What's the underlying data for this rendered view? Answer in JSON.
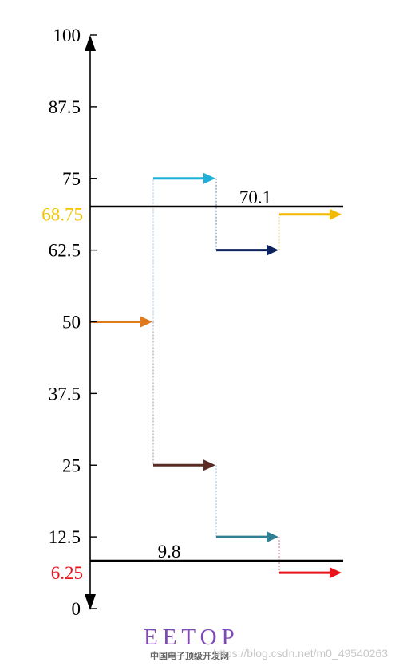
{
  "axis": {
    "ticks": [
      {
        "value": 0,
        "label": "0"
      },
      {
        "value": 12.5,
        "label": "12.5"
      },
      {
        "value": 25,
        "label": "25"
      },
      {
        "value": 37.5,
        "label": "37.5"
      },
      {
        "value": 50,
        "label": "50"
      },
      {
        "value": 62.5,
        "label": "62.5"
      },
      {
        "value": 75,
        "label": "75"
      },
      {
        "value": 87.5,
        "label": "87.5"
      },
      {
        "value": 100,
        "label": "100"
      }
    ],
    "range": [
      0,
      100
    ]
  },
  "thresholds": [
    {
      "value": 68.75,
      "axis_label": "68.75",
      "axis_label_color": "#f2c200",
      "line_label": "70.1"
    },
    {
      "value": 6.25,
      "axis_label": "6.25",
      "axis_label_color": "#e8131b",
      "line_label": "9.8"
    }
  ],
  "steps": [
    {
      "step": 0,
      "value": 50,
      "color": "#e07a1e"
    },
    {
      "step": 1,
      "value": 75,
      "color": "#1fb0d8"
    },
    {
      "step": 1,
      "value": 25,
      "color": "#5a2a24"
    },
    {
      "step": 2,
      "value": 62.5,
      "color": "#0f2260"
    },
    {
      "step": 2,
      "value": 12.5,
      "color": "#2f8092"
    },
    {
      "step": 3,
      "value": 68.75,
      "color": "#f5b800"
    },
    {
      "step": 3,
      "value": 6.25,
      "color": "#e8131b"
    }
  ],
  "connectors": [
    {
      "step": 1,
      "from": 50,
      "to": 75,
      "color": "#9ec9ea"
    },
    {
      "step": 1,
      "from": 50,
      "to": 25,
      "color": "#9aa7c6"
    },
    {
      "step": 2,
      "from": 75,
      "to": 62.5,
      "color": "#7a8fb5"
    },
    {
      "step": 2,
      "from": 25,
      "to": 12.5,
      "color": "#9ec9ea"
    },
    {
      "step": 3,
      "from": 62.5,
      "to": 68.75,
      "color": "#e8e08a"
    },
    {
      "step": 3,
      "from": 12.5,
      "to": 6.25,
      "color": "#d88aa0"
    }
  ],
  "logo": {
    "text": "EETOP",
    "subtitle": "中国电子顶级开发网"
  },
  "watermark": "https://blog.csdn.net/m0_49540263"
}
